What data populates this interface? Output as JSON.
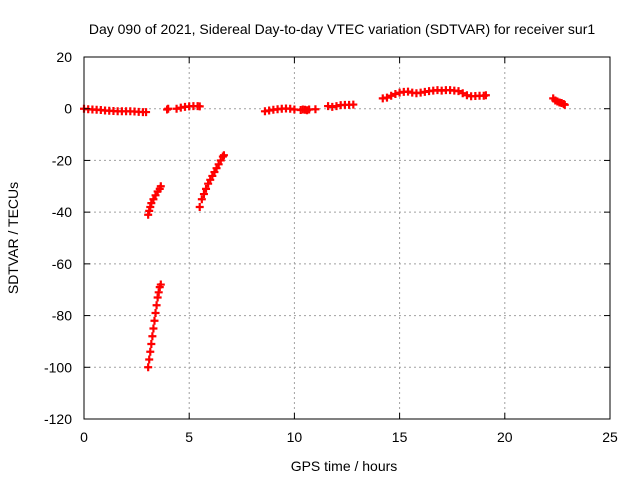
{
  "chart_data": {
    "type": "scatter",
    "title": "Day 090 of 2021, Sidereal Day-to-day VTEC variation (SDTVAR) for receiver sur1",
    "xlabel": "GPS time / hours",
    "ylabel": "SDTVAR / TECUs",
    "xlim": [
      0,
      25
    ],
    "ylim": [
      -120,
      20
    ],
    "xticks": [
      0,
      5,
      10,
      15,
      20,
      25
    ],
    "yticks": [
      -120,
      -100,
      -80,
      -60,
      -40,
      -20,
      0,
      20
    ],
    "grid": true,
    "series": [
      {
        "name": "SDTVAR",
        "color": "#ff0000",
        "marker": "plus",
        "points": [
          [
            0.0,
            0.0
          ],
          [
            0.2,
            -0.2
          ],
          [
            0.4,
            -0.3
          ],
          [
            0.6,
            -0.4
          ],
          [
            0.8,
            -0.5
          ],
          [
            1.0,
            -0.7
          ],
          [
            1.2,
            -0.8
          ],
          [
            1.4,
            -0.9
          ],
          [
            1.6,
            -1.0
          ],
          [
            1.8,
            -1.0
          ],
          [
            2.0,
            -1.0
          ],
          [
            2.2,
            -1.0
          ],
          [
            2.4,
            -1.1
          ],
          [
            2.6,
            -1.2
          ],
          [
            2.8,
            -1.3
          ],
          [
            2.95,
            -1.3
          ],
          [
            3.05,
            -100
          ],
          [
            3.1,
            -97
          ],
          [
            3.15,
            -94
          ],
          [
            3.2,
            -91
          ],
          [
            3.25,
            -88
          ],
          [
            3.3,
            -85
          ],
          [
            3.35,
            -82
          ],
          [
            3.4,
            -79
          ],
          [
            3.45,
            -76
          ],
          [
            3.5,
            -73
          ],
          [
            3.55,
            -71
          ],
          [
            3.6,
            -69
          ],
          [
            3.65,
            -68
          ],
          [
            3.05,
            -41
          ],
          [
            3.1,
            -39.5
          ],
          [
            3.15,
            -38
          ],
          [
            3.2,
            -36.5
          ],
          [
            3.3,
            -35
          ],
          [
            3.4,
            -33.5
          ],
          [
            3.5,
            -32
          ],
          [
            3.6,
            -31
          ],
          [
            3.65,
            -30
          ],
          [
            3.95,
            -0.3
          ],
          [
            4.0,
            0.0
          ],
          [
            4.4,
            0.0
          ],
          [
            4.6,
            0.4
          ],
          [
            4.8,
            0.7
          ],
          [
            5.0,
            0.9
          ],
          [
            5.2,
            1.0
          ],
          [
            5.4,
            1.0
          ],
          [
            5.5,
            0.9
          ],
          [
            5.5,
            -38
          ],
          [
            5.6,
            -35
          ],
          [
            5.7,
            -33
          ],
          [
            5.8,
            -31
          ],
          [
            5.9,
            -29
          ],
          [
            6.0,
            -27.5
          ],
          [
            6.1,
            -26
          ],
          [
            6.2,
            -24.5
          ],
          [
            6.3,
            -23
          ],
          [
            6.4,
            -21.5
          ],
          [
            6.5,
            -20
          ],
          [
            6.6,
            -18.5
          ],
          [
            6.65,
            -18
          ],
          [
            8.6,
            -1.0
          ],
          [
            8.8,
            -0.7
          ],
          [
            9.0,
            -0.4
          ],
          [
            9.2,
            -0.2
          ],
          [
            9.4,
            0.0
          ],
          [
            9.6,
            0.1
          ],
          [
            9.8,
            0.0
          ],
          [
            10.0,
            -0.3
          ],
          [
            10.3,
            -0.5
          ],
          [
            10.4,
            -0.3
          ],
          [
            10.5,
            -0.4
          ],
          [
            10.6,
            -0.6
          ],
          [
            10.7,
            -0.3
          ],
          [
            11.0,
            -0.2
          ],
          [
            11.6,
            1.0
          ],
          [
            11.8,
            0.7
          ],
          [
            12.0,
            1.0
          ],
          [
            12.2,
            1.4
          ],
          [
            12.4,
            1.5
          ],
          [
            12.6,
            1.5
          ],
          [
            12.8,
            1.6
          ],
          [
            14.2,
            4.0
          ],
          [
            14.4,
            4.3
          ],
          [
            14.6,
            5.0
          ],
          [
            14.8,
            5.7
          ],
          [
            15.0,
            6.2
          ],
          [
            15.2,
            6.5
          ],
          [
            15.4,
            6.6
          ],
          [
            15.6,
            6.2
          ],
          [
            15.8,
            6.0
          ],
          [
            16.0,
            6.2
          ],
          [
            16.2,
            6.5
          ],
          [
            16.4,
            6.8
          ],
          [
            16.6,
            7.0
          ],
          [
            16.8,
            7.2
          ],
          [
            17.0,
            7.0
          ],
          [
            17.2,
            7.2
          ],
          [
            17.4,
            7.2
          ],
          [
            17.6,
            7.0
          ],
          [
            17.8,
            6.8
          ],
          [
            18.0,
            6.0
          ],
          [
            18.2,
            5.2
          ],
          [
            18.4,
            4.8
          ],
          [
            18.6,
            4.9
          ],
          [
            18.8,
            5.0
          ],
          [
            19.0,
            5.0
          ],
          [
            19.1,
            5.2
          ],
          [
            22.3,
            4.0
          ],
          [
            22.4,
            3.2
          ],
          [
            22.5,
            2.8
          ],
          [
            22.6,
            2.4
          ],
          [
            22.7,
            2.2
          ],
          [
            22.8,
            1.8
          ],
          [
            22.85,
            1.5
          ]
        ]
      }
    ]
  }
}
